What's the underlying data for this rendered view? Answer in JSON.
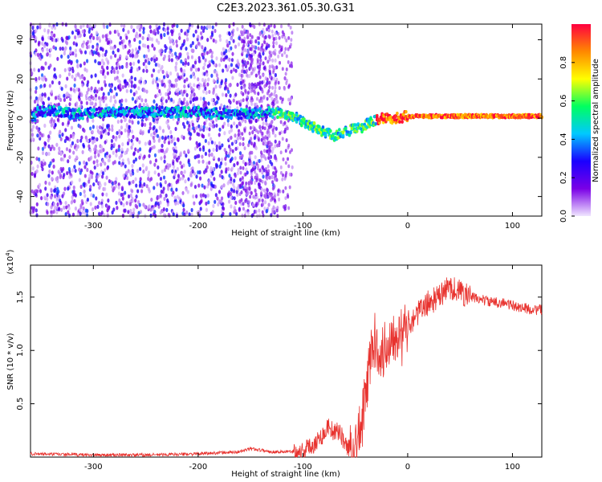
{
  "title": "C2E3.2023.361.05.30.G31",
  "chart_data": [
    {
      "type": "heatmap",
      "xlabel": "Height of straight line (km)",
      "ylabel": "Frequency (Hz)",
      "xlim": [
        -360,
        128
      ],
      "ylim": [
        -50,
        48
      ],
      "xticks": [
        -300,
        -200,
        -100,
        0,
        100
      ],
      "yticks": [
        -40,
        -20,
        0,
        20,
        40
      ],
      "colorbar": {
        "label": "Normalized spectral amplitude",
        "range": [
          0,
          1
        ],
        "ticks": [
          "0.0",
          "0.2",
          "0.4",
          "0.6",
          "0.8"
        ],
        "colors": [
          "#f0e6ff",
          "#7a00e6",
          "#1a00ff",
          "#00c8ff",
          "#00ff60",
          "#ffff00",
          "#ff8800",
          "#ff0040"
        ]
      },
      "ridge_frequency": [
        [
          -355,
          3
        ],
        [
          -340,
          4
        ],
        [
          -320,
          2
        ],
        [
          -290,
          3
        ],
        [
          -250,
          3
        ],
        [
          -200,
          3
        ],
        [
          -170,
          2
        ],
        [
          -130,
          3
        ],
        [
          -110,
          1
        ],
        [
          -95,
          -3
        ],
        [
          -80,
          -7
        ],
        [
          -70,
          -9
        ],
        [
          -60,
          -7
        ],
        [
          -45,
          -5
        ],
        [
          -35,
          -2
        ],
        [
          -25,
          0
        ],
        [
          -10,
          0
        ],
        [
          0,
          1
        ],
        [
          50,
          1
        ],
        [
          128,
          1
        ]
      ]
    },
    {
      "type": "line",
      "xlabel": "Height of straight line (km)",
      "ylabel": "SNR (10 * v/v)",
      "scale_label": "(x10",
      "scale_exp": "4",
      "xlim": [
        -360,
        128
      ],
      "ylim": [
        0,
        1.8
      ],
      "xticks": [
        -300,
        -200,
        -100,
        0,
        100
      ],
      "yticks": [
        0.5,
        1.0,
        1.5
      ],
      "yticklabels": [
        "0.5",
        "1.0",
        "1.5"
      ],
      "color": "#e8322e",
      "series": [
        {
          "x": [
            -360,
            -300,
            -250,
            -200,
            -160,
            -150,
            -130,
            -110,
            -100,
            -90,
            -80,
            -75,
            -70,
            -65,
            -60,
            -55,
            -50,
            -45,
            -40,
            -35,
            -30,
            -25,
            -20,
            -15,
            -10,
            -5,
            0,
            10,
            20,
            30,
            40,
            50,
            60,
            70,
            80,
            90,
            100,
            110,
            120,
            128
          ],
          "y": [
            0.03,
            0.02,
            0.02,
            0.03,
            0.05,
            0.08,
            0.05,
            0.05,
            0.06,
            0.12,
            0.22,
            0.3,
            0.22,
            0.25,
            0.12,
            0.08,
            0.1,
            0.25,
            0.55,
            1.0,
            1.1,
            0.95,
            1.05,
            1.15,
            1.2,
            1.1,
            1.25,
            1.35,
            1.45,
            1.5,
            1.6,
            1.55,
            1.5,
            1.48,
            1.45,
            1.45,
            1.42,
            1.4,
            1.38,
            1.38
          ]
        }
      ]
    }
  ]
}
